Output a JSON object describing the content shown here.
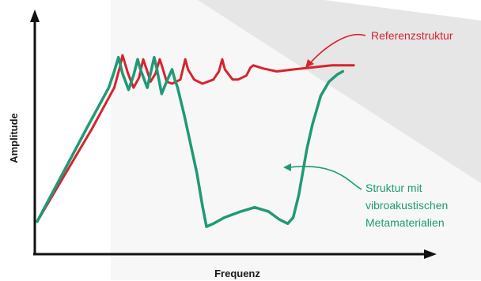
{
  "chart_data": {
    "type": "line",
    "xlabel": "Frequenz",
    "ylabel": "Amplitude",
    "grid": false,
    "legend": "inline annotations",
    "colors": {
      "reference": "#d7232f",
      "meta": "#1f9a76",
      "axis": "#111111",
      "shade": "#e6e6e6"
    },
    "series": [
      {
        "name": "Referenzstruktur",
        "color": "#d7232f",
        "points": [
          [
            0,
            0.04
          ],
          [
            0.2,
            0.5
          ],
          [
            0.28,
            0.7
          ],
          [
            0.3,
            0.8
          ],
          [
            0.31,
            0.86
          ],
          [
            0.33,
            0.77
          ],
          [
            0.35,
            0.7
          ],
          [
            0.37,
            0.75
          ],
          [
            0.385,
            0.84
          ],
          [
            0.395,
            0.8
          ],
          [
            0.412,
            0.73
          ],
          [
            0.43,
            0.77
          ],
          [
            0.445,
            0.84
          ],
          [
            0.455,
            0.8
          ],
          [
            0.47,
            0.73
          ],
          [
            0.49,
            0.72
          ],
          [
            0.52,
            0.74
          ],
          [
            0.538,
            0.84
          ],
          [
            0.548,
            0.79
          ],
          [
            0.57,
            0.74
          ],
          [
            0.6,
            0.72
          ],
          [
            0.64,
            0.74
          ],
          [
            0.66,
            0.78
          ],
          [
            0.672,
            0.84
          ],
          [
            0.682,
            0.79
          ],
          [
            0.71,
            0.74
          ],
          [
            0.73,
            0.74
          ],
          [
            0.76,
            0.76
          ],
          [
            0.775,
            0.8
          ],
          [
            0.785,
            0.81
          ],
          [
            0.82,
            0.795
          ],
          [
            0.87,
            0.78
          ],
          [
            0.93,
            0.79
          ],
          [
            1.0,
            0.8
          ],
          [
            1.07,
            0.81
          ],
          [
            1.15,
            0.81
          ]
        ]
      },
      {
        "name": "Struktur mit vibroakustischen Metamaterialien",
        "color": "#1f9a76",
        "points": [
          [
            0,
            0.04
          ],
          [
            0.18,
            0.5
          ],
          [
            0.26,
            0.7
          ],
          [
            0.28,
            0.78
          ],
          [
            0.295,
            0.85
          ],
          [
            0.31,
            0.77
          ],
          [
            0.332,
            0.69
          ],
          [
            0.35,
            0.76
          ],
          [
            0.365,
            0.84
          ],
          [
            0.375,
            0.79
          ],
          [
            0.4,
            0.7
          ],
          [
            0.425,
            0.85
          ],
          [
            0.435,
            0.79
          ],
          [
            0.452,
            0.67
          ],
          [
            0.47,
            0.73
          ],
          [
            0.49,
            0.79
          ],
          [
            0.5,
            0.74
          ],
          [
            0.51,
            0.7
          ],
          [
            0.535,
            0.56
          ],
          [
            0.58,
            0.28
          ],
          [
            0.6,
            0.12
          ],
          [
            0.615,
            0.015
          ],
          [
            0.64,
            0.03
          ],
          [
            0.68,
            0.06
          ],
          [
            0.74,
            0.09
          ],
          [
            0.79,
            0.11
          ],
          [
            0.84,
            0.09
          ],
          [
            0.88,
            0.05
          ],
          [
            0.91,
            0.03
          ],
          [
            0.93,
            0.06
          ],
          [
            0.95,
            0.17
          ],
          [
            0.98,
            0.4
          ],
          [
            1.0,
            0.52
          ],
          [
            1.03,
            0.66
          ],
          [
            1.06,
            0.73
          ],
          [
            1.09,
            0.765
          ],
          [
            1.11,
            0.78
          ]
        ]
      }
    ],
    "annotations": [
      {
        "text": "Referenzstruktur",
        "series": 0
      },
      {
        "lines": [
          "Struktur mit",
          "vibroakustischen",
          "Metamaterialien"
        ],
        "series": 1
      }
    ]
  }
}
